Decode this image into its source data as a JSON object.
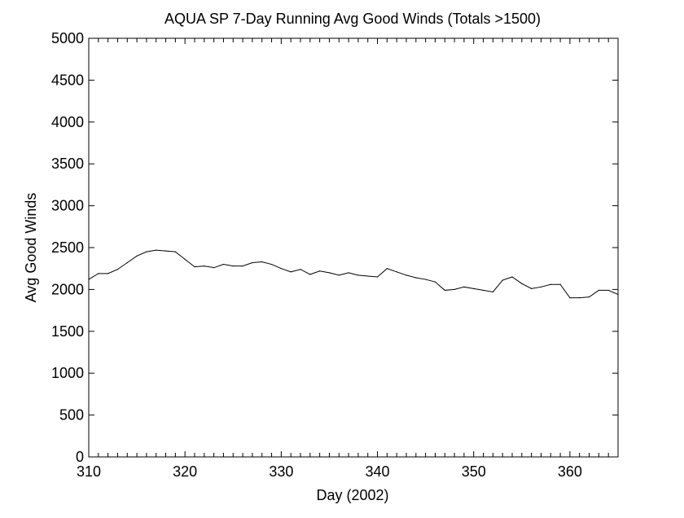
{
  "chart_data": {
    "type": "line",
    "title": "AQUA SP 7-Day Running Avg Good Winds (Totals >1500)",
    "xlabel": "Day (2002)",
    "ylabel": "Avg Good Winds",
    "xlim": [
      310,
      365
    ],
    "ylim": [
      0,
      5000
    ],
    "xticks": [
      310,
      320,
      330,
      340,
      350,
      360
    ],
    "yticks": [
      0,
      500,
      1000,
      1500,
      2000,
      2500,
      3000,
      3500,
      4000,
      4500,
      5000
    ],
    "grid": false,
    "line_color": "#000000",
    "series": [
      {
        "x": [
          310,
          311,
          312,
          313,
          314,
          315,
          316,
          317,
          318,
          319,
          320,
          321,
          322,
          323,
          324,
          325,
          326,
          327,
          328,
          329,
          330,
          331,
          332,
          333,
          334,
          335,
          336,
          337,
          338,
          339,
          340,
          341,
          342,
          343,
          344,
          345,
          346,
          347,
          348,
          349,
          350,
          351,
          352,
          353,
          354,
          355,
          356,
          357,
          358,
          359,
          360,
          361,
          362,
          363,
          364,
          365
        ],
        "y": [
          2120,
          2190,
          2190,
          2240,
          2320,
          2400,
          2450,
          2470,
          2460,
          2450,
          2360,
          2270,
          2280,
          2260,
          2300,
          2280,
          2280,
          2320,
          2330,
          2300,
          2250,
          2210,
          2240,
          2180,
          2220,
          2200,
          2170,
          2200,
          2170,
          2160,
          2150,
          2250,
          2210,
          2170,
          2140,
          2120,
          2090,
          1990,
          2000,
          2030,
          2010,
          1990,
          1970,
          2110,
          2150,
          2070,
          2010,
          2030,
          2060,
          2060,
          1900,
          1900,
          1910,
          1990,
          1990,
          1940
        ]
      }
    ]
  }
}
